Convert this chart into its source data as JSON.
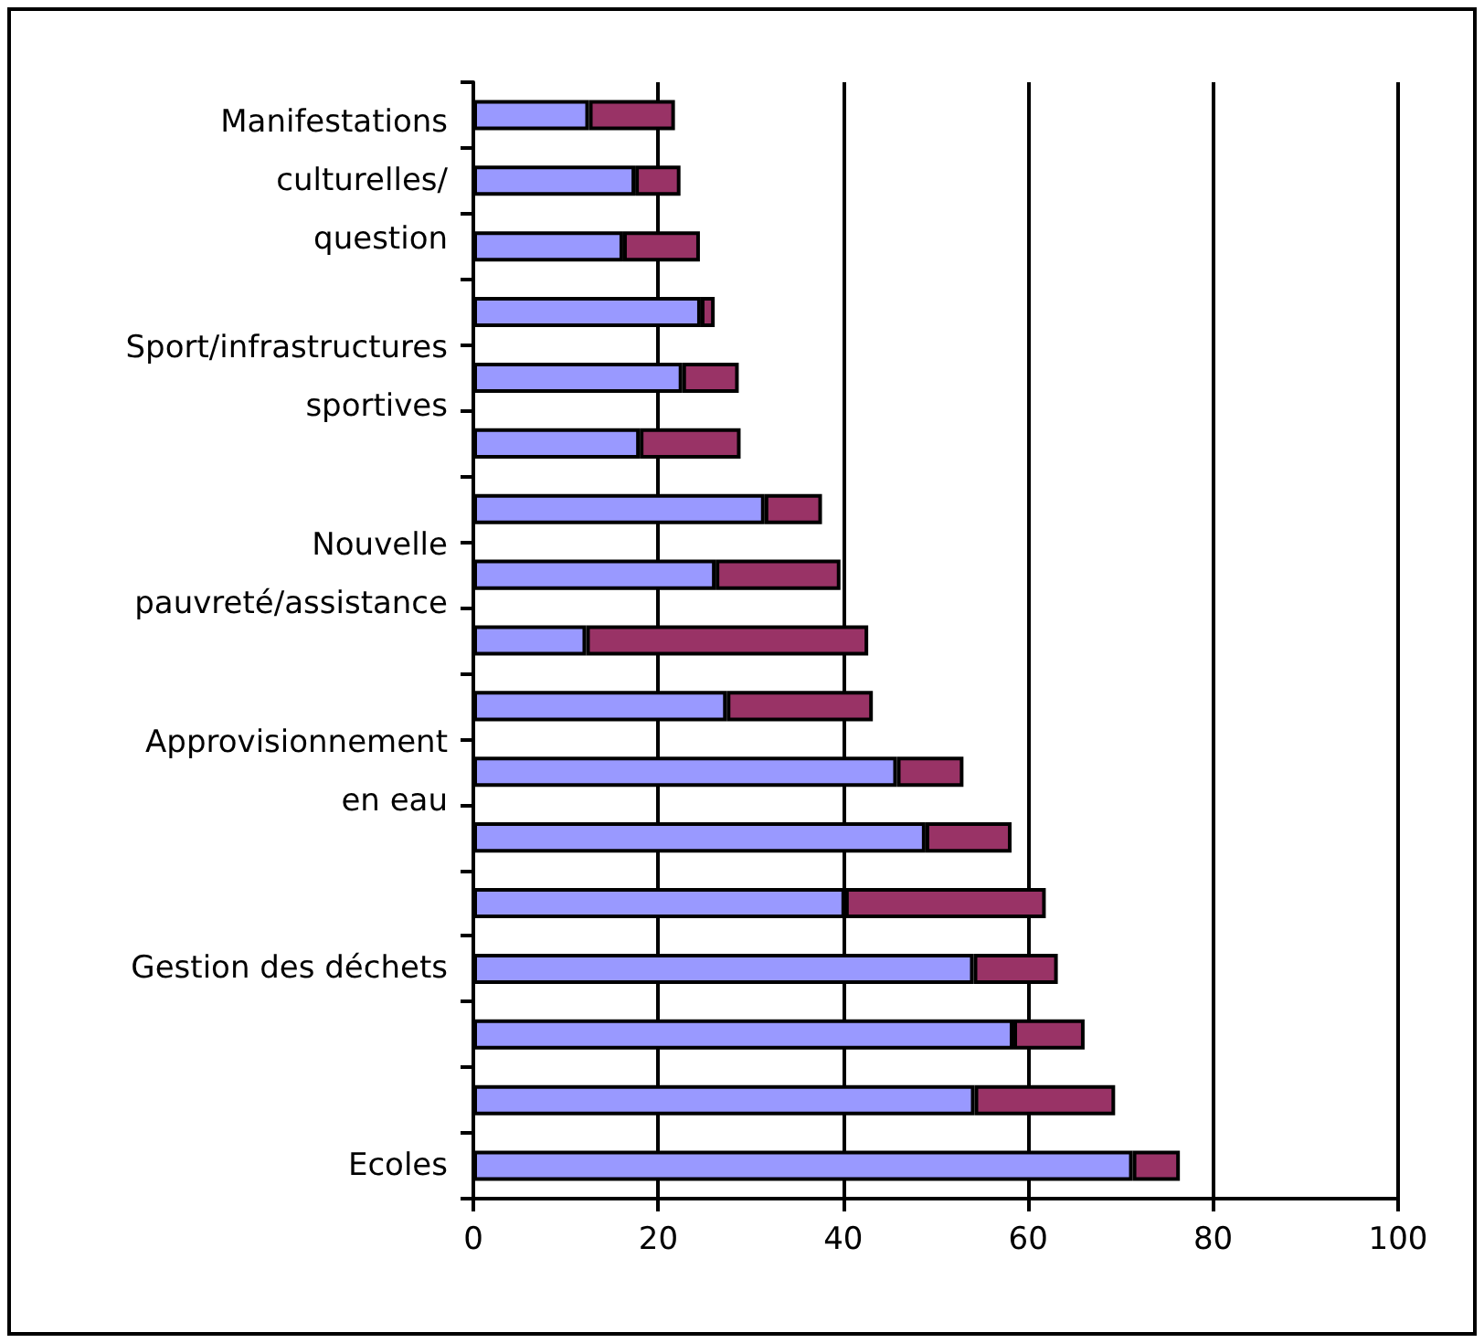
{
  "chart_data": {
    "type": "bar",
    "orientation": "horizontal",
    "stacked": true,
    "categories": [
      null,
      "Manifestations\nculturelles/\nquestion",
      null,
      null,
      "Sport/infrastructures\nsportives",
      null,
      null,
      "Nouvelle\npauvreté/assistance",
      null,
      null,
      "Approvisionnement\nen eau",
      null,
      null,
      "Gestion des déchets",
      null,
      null,
      "Ecoles"
    ],
    "series": [
      {
        "color": "#9999ff",
        "values": [
          12.5,
          17.5,
          16.2,
          24.6,
          22.6,
          18.0,
          31.5,
          26.2,
          12.2,
          27.4,
          45.8,
          48.9,
          40.2,
          54.1,
          58.4,
          54.2,
          71.3
        ]
      },
      {
        "color": "#993366",
        "values": [
          9.3,
          4.9,
          8.3,
          1.5,
          6.1,
          10.9,
          6.2,
          13.5,
          30.5,
          15.8,
          7.2,
          9.3,
          21.7,
          9.1,
          7.7,
          15.2,
          5.1
        ]
      }
    ],
    "xlim": [
      0,
      100
    ],
    "xticks": [
      0,
      20,
      40,
      60,
      80,
      100
    ],
    "grid": "x"
  }
}
